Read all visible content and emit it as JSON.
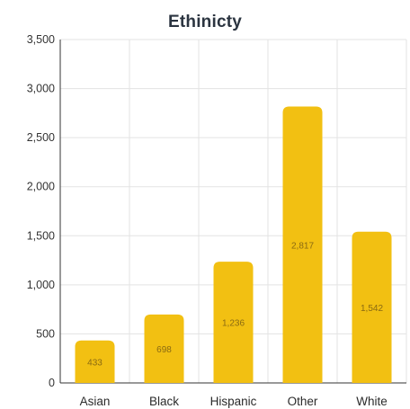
{
  "chart_data": {
    "type": "bar",
    "title": "Ethinicty",
    "xlabel": "",
    "ylabel": "",
    "categories": [
      "Asian",
      "Black",
      "Hispanic",
      "Other",
      "White"
    ],
    "values": [
      433,
      698,
      1236,
      2817,
      1542
    ],
    "data_labels": [
      "433",
      "698",
      "1,236",
      "2,817",
      "1,542"
    ],
    "ylim": [
      0,
      3500
    ],
    "yticks": [
      0,
      500,
      1000,
      1500,
      2000,
      2500,
      3000,
      3500
    ],
    "ytick_labels": [
      "0",
      "500",
      "1,000",
      "1,500",
      "2,000",
      "2,500",
      "3,000",
      "3,500"
    ],
    "grid": true,
    "legend": "none",
    "colors": {
      "bar": "#f2c012",
      "grid": "#e3e3e3",
      "axis": "#333333"
    }
  }
}
